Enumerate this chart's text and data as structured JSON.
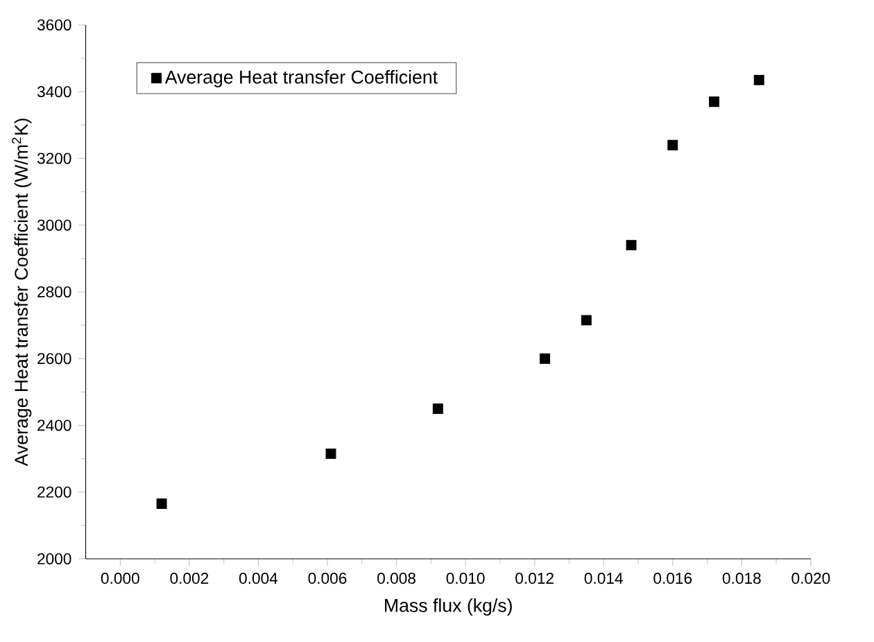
{
  "chart_data": {
    "type": "scatter",
    "xlabel": "Mass flux (kg/s)",
    "ylabel": "Average Heat transfer Coefficient (W/m$^{2}$K)",
    "x": [
      0.0012,
      0.0061,
      0.0092,
      0.0123,
      0.0135,
      0.0148,
      0.016,
      0.0172,
      0.0185
    ],
    "series": [
      {
        "name": "Average Heat transfer Coefficient",
        "color": "#000000",
        "values": [
          2165,
          2315,
          2450,
          2600,
          2715,
          2940,
          3240,
          3370,
          3435
        ]
      }
    ],
    "xlim": [
      -0.001,
      0.02
    ],
    "ylim": [
      2000,
      3600
    ],
    "xticks": [
      {
        "value": 0,
        "label": "0.000"
      },
      {
        "value": 0.002,
        "label": "0.002"
      },
      {
        "value": 0.004,
        "label": "0.004"
      },
      {
        "value": 0.006,
        "label": "0.006"
      },
      {
        "value": 0.008,
        "label": "0.008"
      },
      {
        "value": 0.01,
        "label": "0.010"
      },
      {
        "value": 0.012,
        "label": "0.012"
      },
      {
        "value": 0.014,
        "label": "0.014"
      },
      {
        "value": 0.016,
        "label": "0.016"
      },
      {
        "value": 0.018,
        "label": "0.018"
      },
      {
        "value": 0.02,
        "label": "0.020"
      }
    ],
    "yticks": [
      2000,
      2200,
      2400,
      2600,
      2800,
      3000,
      3200,
      3400,
      3600
    ],
    "marker": "square",
    "legend": "top left",
    "grid": false
  }
}
